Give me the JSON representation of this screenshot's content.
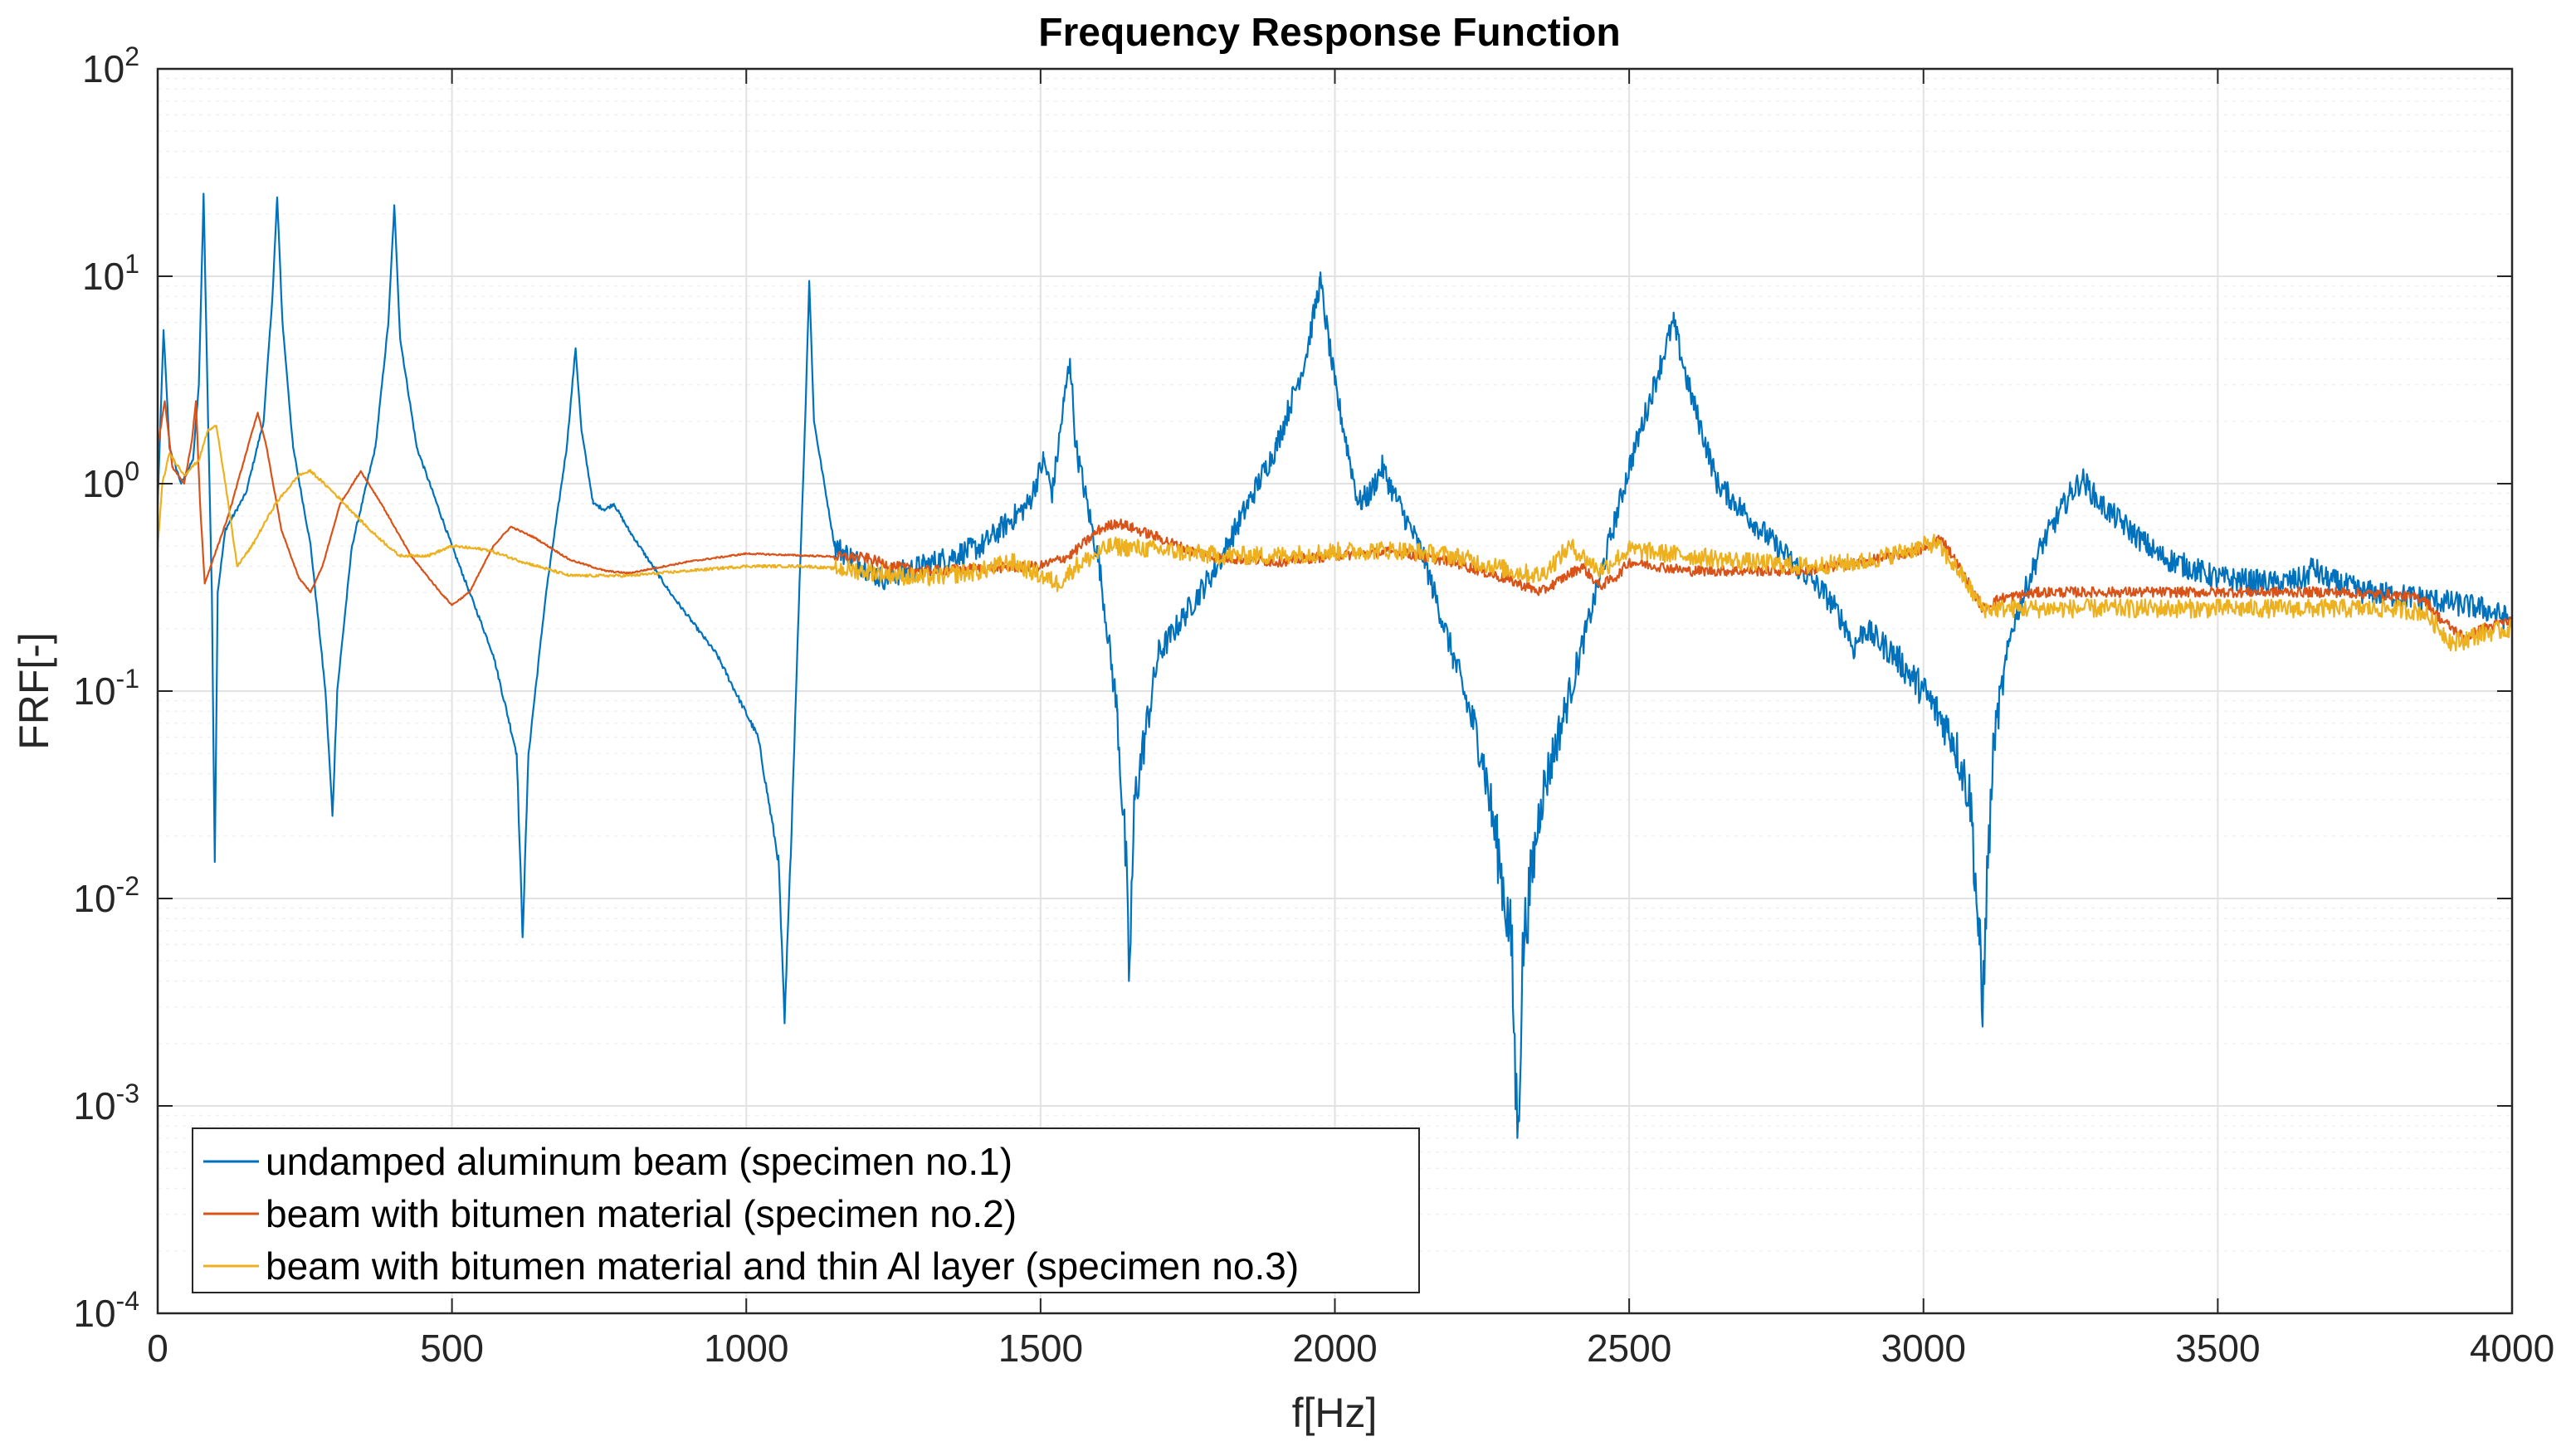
{
  "chart_data": {
    "type": "line",
    "title": "Frequency Response Function",
    "xlabel": "f[Hz]",
    "ylabel": "FRF[-]",
    "xlim": [
      0,
      4000
    ],
    "ylim": [
      0.0001,
      100
    ],
    "yscale": "log",
    "grid": true,
    "legend_position": "bottom-left",
    "x_ticks": [
      0,
      500,
      1000,
      1500,
      2000,
      2500,
      3000,
      3500,
      4000
    ],
    "x_tick_labels": [
      "0",
      "500",
      "1000",
      "1500",
      "2000",
      "2500",
      "3000",
      "3500",
      "4000"
    ],
    "y_tick_exponents": [
      "-4",
      "-3",
      "-2",
      "-1",
      "0",
      "1",
      "2"
    ],
    "y_tick_base": "10",
    "y_ticks": [
      0.0001,
      0.001,
      0.01,
      0.1,
      1,
      10,
      100
    ],
    "series": [
      {
        "name": "undamped aluminum beam (specimen no.1)",
        "color": "#0072BD",
        "noise": 0.06,
        "points": [
          [
            0,
            0.8
          ],
          [
            10,
            5.5
          ],
          [
            20,
            1.5
          ],
          [
            40,
            1.0
          ],
          [
            60,
            1.3
          ],
          [
            70,
            3.0
          ],
          [
            78,
            25
          ],
          [
            85,
            2.5
          ],
          [
            92,
            0.3
          ],
          [
            97,
            0.015
          ],
          [
            102,
            0.3
          ],
          [
            115,
            0.6
          ],
          [
            150,
            0.9
          ],
          [
            180,
            2.0
          ],
          [
            195,
            8.0
          ],
          [
            203,
            24
          ],
          [
            212,
            6.0
          ],
          [
            230,
            1.5
          ],
          [
            260,
            0.5
          ],
          [
            285,
            0.1
          ],
          [
            297,
            0.025
          ],
          [
            305,
            0.1
          ],
          [
            330,
            0.5
          ],
          [
            370,
            1.5
          ],
          [
            392,
            6.0
          ],
          [
            402,
            22
          ],
          [
            412,
            5.0
          ],
          [
            440,
            1.5
          ],
          [
            500,
            0.5
          ],
          [
            570,
            0.15
          ],
          [
            610,
            0.05
          ],
          [
            620,
            0.0065
          ],
          [
            630,
            0.05
          ],
          [
            660,
            0.3
          ],
          [
            695,
            1.5
          ],
          [
            710,
            4.5
          ],
          [
            720,
            1.8
          ],
          [
            740,
            0.8
          ],
          [
            760,
            0.75
          ],
          [
            775,
            0.8
          ],
          [
            800,
            0.6
          ],
          [
            870,
            0.3
          ],
          [
            950,
            0.15
          ],
          [
            1020,
            0.06
          ],
          [
            1055,
            0.015
          ],
          [
            1065,
            0.0025
          ],
          [
            1075,
            0.015
          ],
          [
            1090,
            0.3
          ],
          [
            1100,
            2.0
          ],
          [
            1107,
            9.5
          ],
          [
            1115,
            2.0
          ],
          [
            1150,
            0.5
          ],
          [
            1230,
            0.35
          ],
          [
            1300,
            0.4
          ],
          [
            1400,
            0.5
          ],
          [
            1480,
            0.8
          ],
          [
            1505,
            1.3
          ],
          [
            1520,
            0.9
          ],
          [
            1540,
            2.5
          ],
          [
            1550,
            4.0
          ],
          [
            1560,
            1.5
          ],
          [
            1600,
            0.4
          ],
          [
            1630,
            0.08
          ],
          [
            1645,
            0.015
          ],
          [
            1650,
            0.004
          ],
          [
            1660,
            0.03
          ],
          [
            1700,
            0.15
          ],
          [
            1800,
            0.4
          ],
          [
            1900,
            1.5
          ],
          [
            1950,
            4.0
          ],
          [
            1975,
            9.5
          ],
          [
            2000,
            3.0
          ],
          [
            2040,
            0.8
          ],
          [
            2060,
            0.9
          ],
          [
            2080,
            1.2
          ],
          [
            2100,
            0.9
          ],
          [
            2150,
            0.45
          ],
          [
            2200,
            0.15
          ],
          [
            2250,
            0.05
          ],
          [
            2280,
            0.015
          ],
          [
            2300,
            0.006
          ],
          [
            2310,
            0.0007
          ],
          [
            2320,
            0.006
          ],
          [
            2350,
            0.03
          ],
          [
            2400,
            0.1
          ],
          [
            2450,
            0.35
          ],
          [
            2500,
            1.2
          ],
          [
            2550,
            3.5
          ],
          [
            2575,
            6.0
          ],
          [
            2600,
            3.0
          ],
          [
            2650,
            1.0
          ],
          [
            2750,
            0.5
          ],
          [
            2830,
            0.3
          ],
          [
            2850,
            0.25
          ],
          [
            2870,
            0.2
          ],
          [
            2880,
            0.16
          ],
          [
            2900,
            0.2
          ],
          [
            2950,
            0.15
          ],
          [
            3000,
            0.1
          ],
          [
            3050,
            0.06
          ],
          [
            3080,
            0.03
          ],
          [
            3095,
            0.006
          ],
          [
            3100,
            0.0025
          ],
          [
            3105,
            0.008
          ],
          [
            3120,
            0.06
          ],
          [
            3150,
            0.2
          ],
          [
            3200,
            0.5
          ],
          [
            3250,
            0.9
          ],
          [
            3270,
            1.05
          ],
          [
            3300,
            0.8
          ],
          [
            3400,
            0.45
          ],
          [
            3500,
            0.35
          ],
          [
            3600,
            0.33
          ],
          [
            3650,
            0.35
          ],
          [
            3660,
            0.4
          ],
          [
            3680,
            0.35
          ],
          [
            3750,
            0.3
          ],
          [
            3850,
            0.28
          ],
          [
            3950,
            0.25
          ],
          [
            4000,
            0.22
          ]
        ]
      },
      {
        "name": "beam with bitumen material (specimen no.2)",
        "color": "#D95319",
        "noise": 0.025,
        "points": [
          [
            0,
            1.5
          ],
          [
            12,
            2.5
          ],
          [
            25,
            1.2
          ],
          [
            45,
            1.0
          ],
          [
            58,
            1.6
          ],
          [
            65,
            2.5
          ],
          [
            72,
            0.8
          ],
          [
            80,
            0.33
          ],
          [
            90,
            0.4
          ],
          [
            120,
            0.7
          ],
          [
            150,
            1.4
          ],
          [
            170,
            2.2
          ],
          [
            185,
            1.5
          ],
          [
            210,
            0.6
          ],
          [
            240,
            0.35
          ],
          [
            260,
            0.3
          ],
          [
            280,
            0.4
          ],
          [
            310,
            0.8
          ],
          [
            345,
            1.15
          ],
          [
            380,
            0.8
          ],
          [
            430,
            0.45
          ],
          [
            480,
            0.3
          ],
          [
            500,
            0.26
          ],
          [
            530,
            0.3
          ],
          [
            570,
            0.5
          ],
          [
            600,
            0.62
          ],
          [
            640,
            0.55
          ],
          [
            700,
            0.43
          ],
          [
            760,
            0.38
          ],
          [
            800,
            0.37
          ],
          [
            900,
            0.42
          ],
          [
            1000,
            0.46
          ],
          [
            1100,
            0.45
          ],
          [
            1200,
            0.44
          ],
          [
            1250,
            0.4
          ],
          [
            1300,
            0.38
          ],
          [
            1400,
            0.39
          ],
          [
            1500,
            0.4
          ],
          [
            1550,
            0.45
          ],
          [
            1600,
            0.6
          ],
          [
            1630,
            0.65
          ],
          [
            1700,
            0.55
          ],
          [
            1750,
            0.48
          ],
          [
            1800,
            0.44
          ],
          [
            1900,
            0.42
          ],
          [
            2000,
            0.45
          ],
          [
            2100,
            0.47
          ],
          [
            2200,
            0.42
          ],
          [
            2300,
            0.34
          ],
          [
            2350,
            0.3
          ],
          [
            2380,
            0.34
          ],
          [
            2420,
            0.4
          ],
          [
            2450,
            0.32
          ],
          [
            2480,
            0.36
          ],
          [
            2500,
            0.42
          ],
          [
            2600,
            0.38
          ],
          [
            2700,
            0.38
          ],
          [
            2800,
            0.38
          ],
          [
            2900,
            0.42
          ],
          [
            3000,
            0.48
          ],
          [
            3030,
            0.55
          ],
          [
            3060,
            0.4
          ],
          [
            3080,
            0.32
          ],
          [
            3100,
            0.25
          ],
          [
            3130,
            0.28
          ],
          [
            3200,
            0.3
          ],
          [
            3300,
            0.3
          ],
          [
            3500,
            0.3
          ],
          [
            3700,
            0.3
          ],
          [
            3800,
            0.29
          ],
          [
            3850,
            0.28
          ],
          [
            3880,
            0.22
          ],
          [
            3920,
            0.18
          ],
          [
            3950,
            0.2
          ],
          [
            4000,
            0.22
          ]
        ]
      },
      {
        "name": "beam with bitumen material and thin Al layer (specimen no.3)",
        "color": "#EDB120",
        "noise": 0.045,
        "points": [
          [
            0,
            0.5
          ],
          [
            8,
            1.0
          ],
          [
            20,
            1.4
          ],
          [
            45,
            1.1
          ],
          [
            70,
            1.3
          ],
          [
            85,
            1.8
          ],
          [
            100,
            1.9
          ],
          [
            115,
            1.0
          ],
          [
            135,
            0.4
          ],
          [
            160,
            0.5
          ],
          [
            200,
            0.8
          ],
          [
            240,
            1.1
          ],
          [
            260,
            1.15
          ],
          [
            300,
            0.9
          ],
          [
            360,
            0.6
          ],
          [
            410,
            0.45
          ],
          [
            460,
            0.45
          ],
          [
            500,
            0.5
          ],
          [
            560,
            0.48
          ],
          [
            620,
            0.42
          ],
          [
            700,
            0.36
          ],
          [
            800,
            0.36
          ],
          [
            900,
            0.38
          ],
          [
            1000,
            0.4
          ],
          [
            1100,
            0.4
          ],
          [
            1200,
            0.38
          ],
          [
            1300,
            0.35
          ],
          [
            1400,
            0.38
          ],
          [
            1450,
            0.42
          ],
          [
            1500,
            0.36
          ],
          [
            1530,
            0.33
          ],
          [
            1560,
            0.4
          ],
          [
            1620,
            0.5
          ],
          [
            1700,
            0.48
          ],
          [
            1800,
            0.45
          ],
          [
            1900,
            0.45
          ],
          [
            2000,
            0.47
          ],
          [
            2100,
            0.48
          ],
          [
            2200,
            0.45
          ],
          [
            2300,
            0.38
          ],
          [
            2350,
            0.36
          ],
          [
            2400,
            0.5
          ],
          [
            2420,
            0.45
          ],
          [
            2450,
            0.38
          ],
          [
            2500,
            0.48
          ],
          [
            2600,
            0.45
          ],
          [
            2700,
            0.42
          ],
          [
            2800,
            0.4
          ],
          [
            2900,
            0.42
          ],
          [
            3000,
            0.5
          ],
          [
            3020,
            0.52
          ],
          [
            3060,
            0.38
          ],
          [
            3100,
            0.25
          ],
          [
            3200,
            0.25
          ],
          [
            3400,
            0.25
          ],
          [
            3600,
            0.25
          ],
          [
            3800,
            0.25
          ],
          [
            3850,
            0.24
          ],
          [
            3900,
            0.17
          ],
          [
            3950,
            0.19
          ],
          [
            4000,
            0.2
          ]
        ]
      }
    ]
  }
}
